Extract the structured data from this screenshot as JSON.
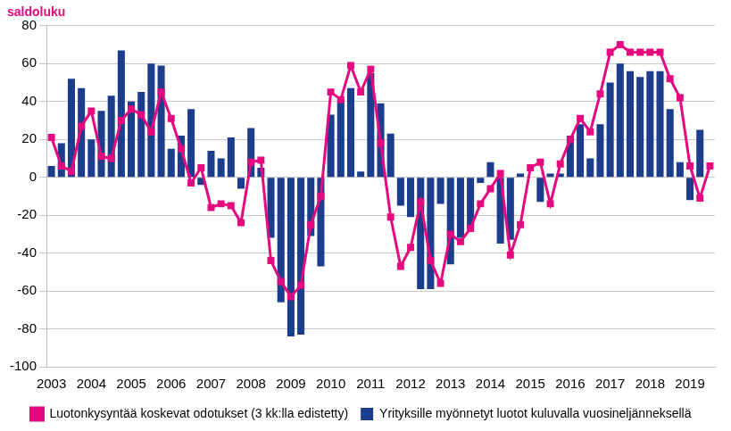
{
  "chart_data": {
    "type": "bar",
    "y_label": "saldoluku",
    "categories": [
      "2003",
      null,
      null,
      null,
      "2004",
      null,
      null,
      null,
      "2005",
      null,
      null,
      null,
      "2006",
      null,
      null,
      null,
      "2007",
      null,
      null,
      null,
      "2008",
      null,
      null,
      null,
      "2009",
      null,
      null,
      null,
      "2010",
      null,
      null,
      null,
      "2011",
      null,
      null,
      null,
      "2012",
      null,
      null,
      null,
      "2013",
      null,
      null,
      null,
      "2014",
      null,
      null,
      null,
      "2015",
      null,
      null,
      null,
      "2016",
      null,
      null,
      null,
      "2017",
      null,
      null,
      null,
      "2018",
      null,
      null,
      null,
      "2019",
      null,
      null
    ],
    "series": [
      {
        "name": "Yrityksille myönnetyt luotot kuluvalla vuosineljänneksellä",
        "type": "bar",
        "color": "#1b3d8c",
        "values": [
          6,
          18,
          52,
          47,
          20,
          35,
          43,
          67,
          40,
          45,
          60,
          59,
          15,
          22,
          36,
          -4,
          14,
          10,
          21,
          -6,
          26,
          5,
          -32,
          -66,
          -84,
          -83,
          -31,
          -47,
          33,
          41,
          47,
          3,
          55,
          39,
          23,
          -15,
          -21,
          -59,
          -59,
          -14,
          -46,
          -32,
          -27,
          -3,
          8,
          -35,
          -33,
          2,
          0,
          -13,
          2,
          2,
          22,
          28,
          10,
          28,
          50,
          60,
          56,
          53,
          56,
          56,
          36,
          8,
          -12,
          25,
          null
        ]
      },
      {
        "name": "Luotonkysyntää koskevat odotukset (3 kk:lla edistetty)",
        "type": "line",
        "color": "#e5097f",
        "marker": "square",
        "line_style": "solid",
        "values": [
          21,
          6,
          3,
          27,
          35,
          11,
          10,
          30,
          36,
          33,
          24,
          45,
          31,
          15,
          -3,
          5,
          -16,
          -14,
          -15,
          -24,
          8,
          9,
          -44,
          -55,
          -63,
          -57,
          -25,
          -10,
          45,
          41,
          59,
          45,
          57,
          18,
          -21,
          -47,
          -37,
          -13,
          -44,
          -56,
          -30,
          -34,
          -27,
          -14,
          -6,
          2,
          -41,
          -25,
          5,
          8,
          -14,
          7,
          20,
          31,
          24,
          44,
          66,
          70,
          66,
          66,
          66,
          66,
          52,
          42,
          6,
          -11,
          6
        ]
      }
    ],
    "ylim": [
      -100,
      80
    ],
    "yticks": [
      -100,
      -80,
      -60,
      -40,
      -20,
      0,
      20,
      40,
      60,
      80
    ],
    "grid": true,
    "legend": "bottom"
  }
}
